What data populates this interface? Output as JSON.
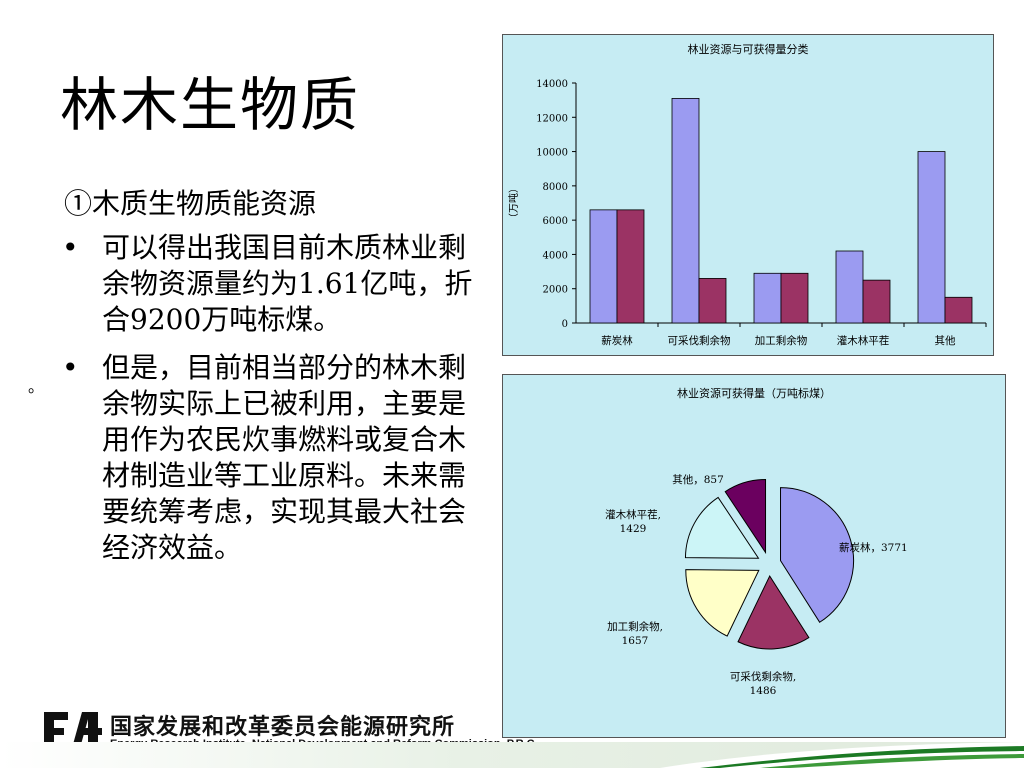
{
  "slide": {
    "title": "林木生物质",
    "subheading": "①木质生物质能资源",
    "bullets": [
      "可以得出我国目前木质林业剩余物资源量约为1.61亿吨，折合9200万吨标煤。",
      "但是，目前相当部分的林木剩余物实际上已被利用，主要是用作为农民炊事燃料或复合木材制造业等工业原料。未来需要统筹考虑，实现其最大社会经济效益。"
    ],
    "bullet_glyph": "•",
    "stray_mark": "。"
  },
  "footer": {
    "org_cn": "国家发展和改革委员会能源研究所",
    "org_en": "Energy Research Institute, National Development and Reform Commission, P.R.C"
  },
  "colors": {
    "chart_bg": "#c6ecf3",
    "series1": "#9b9bf1",
    "series2": "#9b3364",
    "pie": [
      "#9b9bf1",
      "#9b3364",
      "#ffffc8",
      "#ccf5f7",
      "#6b005f"
    ]
  },
  "chart_data": [
    {
      "type": "bar",
      "title": "林业资源与可获得量分类",
      "ylabel": "（万吨）",
      "xlabel": "",
      "categories": [
        "薪炭林",
        "可采伐剩余物",
        "加工剩余物",
        "灌木林平茬",
        "其他"
      ],
      "series": [
        {
          "values": [
            6600,
            13100,
            2900,
            4200,
            10000
          ]
        },
        {
          "values": [
            6600,
            2600,
            2900,
            2500,
            1500
          ]
        }
      ],
      "ylim": [
        0,
        14000
      ],
      "yticks": [
        "0",
        "2000",
        "4000",
        "6000",
        "8000",
        "10000",
        "12000",
        "14000"
      ],
      "grid": false,
      "legend": "none"
    },
    {
      "type": "pie",
      "title": "林业资源可获得量（万吨标煤）",
      "exploded": true,
      "slices": [
        {
          "label": "薪炭林",
          "value": 3771,
          "text": "薪炭林，3771"
        },
        {
          "label": "可采伐剩余物",
          "value": 1486,
          "text": [
            "可采伐剩余物,",
            "1486"
          ]
        },
        {
          "label": "加工剩余物",
          "value": 1657,
          "text": [
            "加工剩余物,",
            "1657"
          ]
        },
        {
          "label": "灌木林平茬",
          "value": 1429,
          "text": [
            "灌木林平茬,",
            "1429"
          ]
        },
        {
          "label": "其他",
          "value": 857,
          "text": "其他，857"
        }
      ]
    }
  ]
}
